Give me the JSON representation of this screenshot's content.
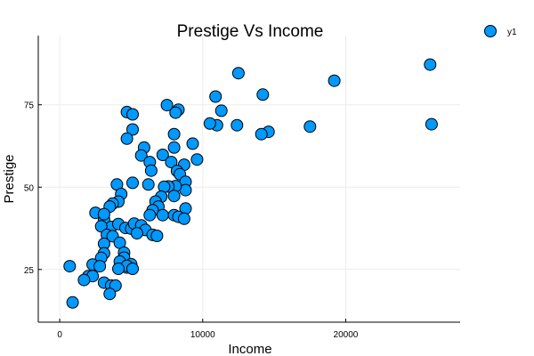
{
  "chart_data": {
    "type": "scatter",
    "title": "Prestige Vs Income",
    "xlabel": "Income",
    "ylabel": "Prestige",
    "xlim": [
      -1500,
      28000
    ],
    "ylim": [
      9,
      96
    ],
    "xticks": [
      0,
      10000,
      20000
    ],
    "xtick_labels": [
      "0",
      "10000",
      "20000"
    ],
    "yticks": [
      25,
      50,
      75
    ],
    "ytick_labels": [
      "25",
      "50",
      "75"
    ],
    "grid": true,
    "legend": {
      "position": "top-right",
      "entries": [
        "y1"
      ]
    },
    "series": [
      {
        "name": "y1",
        "color": "#0099ff",
        "edge_color": "#000000",
        "points": [
          [
            25900,
            87.2
          ],
          [
            19200,
            82.3
          ],
          [
            12500,
            84.6
          ],
          [
            26000,
            69.1
          ],
          [
            17500,
            68.4
          ],
          [
            14600,
            66.8
          ],
          [
            14100,
            66.1
          ],
          [
            12400,
            68.8
          ],
          [
            11000,
            68.8
          ],
          [
            10500,
            69.3
          ],
          [
            11300,
            73.2
          ],
          [
            10900,
            77.5
          ],
          [
            14200,
            78.1
          ],
          [
            7500,
            74.9
          ],
          [
            8300,
            73.5
          ],
          [
            8100,
            72.6
          ],
          [
            4700,
            72.8
          ],
          [
            5100,
            72.1
          ],
          [
            5100,
            67.5
          ],
          [
            4700,
            64.7
          ],
          [
            5900,
            62.0
          ],
          [
            8000,
            62.0
          ],
          [
            8000,
            66.1
          ],
          [
            9300,
            63.2
          ],
          [
            5700,
            59.6
          ],
          [
            6300,
            57.6
          ],
          [
            6400,
            55.0
          ],
          [
            7200,
            59.8
          ],
          [
            7800,
            57.6
          ],
          [
            8700,
            56.8
          ],
          [
            9600,
            58.4
          ],
          [
            8200,
            54.9
          ],
          [
            8400,
            53.9
          ],
          [
            8800,
            51.6
          ],
          [
            8800,
            49.1
          ],
          [
            8100,
            50.3
          ],
          [
            7600,
            50.2
          ],
          [
            6200,
            50.8
          ],
          [
            7300,
            50.1
          ],
          [
            5100,
            51.3
          ],
          [
            4000,
            50.8
          ],
          [
            4300,
            47.9
          ],
          [
            4100,
            45.6
          ],
          [
            3700,
            45.0
          ],
          [
            3500,
            44.1
          ],
          [
            7100,
            47.1
          ],
          [
            8000,
            47.3
          ],
          [
            6700,
            45.6
          ],
          [
            6900,
            44.1
          ],
          [
            6500,
            43.0
          ],
          [
            7200,
            41.5
          ],
          [
            8000,
            41.5
          ],
          [
            8800,
            43.5
          ],
          [
            8300,
            41.0
          ],
          [
            8700,
            40.4
          ],
          [
            6300,
            41.5
          ],
          [
            2500,
            42.2
          ],
          [
            3100,
            40.1
          ],
          [
            3100,
            41.8
          ],
          [
            3600,
            37.9
          ],
          [
            2900,
            38.1
          ],
          [
            4100,
            38.8
          ],
          [
            3300,
            35.5
          ],
          [
            4600,
            37.6
          ],
          [
            5000,
            37.4
          ],
          [
            5200,
            38.9
          ],
          [
            5700,
            38.4
          ],
          [
            6000,
            37.0
          ],
          [
            5400,
            36.0
          ],
          [
            6500,
            35.5
          ],
          [
            6800,
            35.2
          ],
          [
            3700,
            35.1
          ],
          [
            4200,
            33.1
          ],
          [
            3100,
            32.8
          ],
          [
            3100,
            29.9
          ],
          [
            4500,
            30.1
          ],
          [
            4500,
            28.6
          ],
          [
            2900,
            28.5
          ],
          [
            4200,
            27.4
          ],
          [
            5000,
            26.6
          ],
          [
            2300,
            26.5
          ],
          [
            2800,
            26.0
          ],
          [
            4700,
            25.6
          ],
          [
            4700,
            26.1
          ],
          [
            4100,
            25.2
          ],
          [
            5100,
            25.2
          ],
          [
            700,
            26.0
          ],
          [
            2000,
            23.0
          ],
          [
            2300,
            23.0
          ],
          [
            1700,
            21.8
          ],
          [
            3100,
            21.0
          ],
          [
            3600,
            20.1
          ],
          [
            3900,
            20.1
          ],
          [
            3500,
            17.6
          ],
          [
            900,
            15.0
          ]
        ]
      }
    ]
  }
}
